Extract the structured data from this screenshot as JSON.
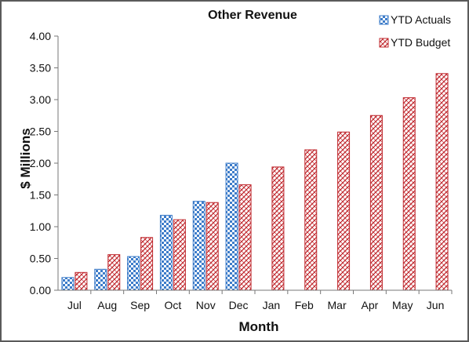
{
  "chart_data": {
    "type": "bar",
    "title": "Other Revenue",
    "xlabel": "Month",
    "ylabel": "$ Millions",
    "categories": [
      "Jul",
      "Aug",
      "Sep",
      "Oct",
      "Nov",
      "Dec",
      "Jan",
      "Feb",
      "Mar",
      "Apr",
      "May",
      "Jun"
    ],
    "series": [
      {
        "name": "YTD Actuals",
        "values": [
          0.2,
          0.33,
          0.53,
          1.18,
          1.4,
          2.0,
          null,
          null,
          null,
          null,
          null,
          null
        ],
        "color": "#3d7cc9"
      },
      {
        "name": "YTD Budget",
        "values": [
          0.28,
          0.56,
          0.83,
          1.11,
          1.38,
          1.66,
          1.94,
          2.21,
          2.49,
          2.75,
          3.03,
          3.41
        ],
        "color": "#c0282e"
      }
    ],
    "ylim": [
      0,
      4.0
    ],
    "yticks": [
      "0.00",
      "0.50",
      "1.00",
      "1.50",
      "2.00",
      "2.50",
      "3.00",
      "3.50",
      "4.00"
    ],
    "grid": false,
    "legend_position": "top-right"
  }
}
